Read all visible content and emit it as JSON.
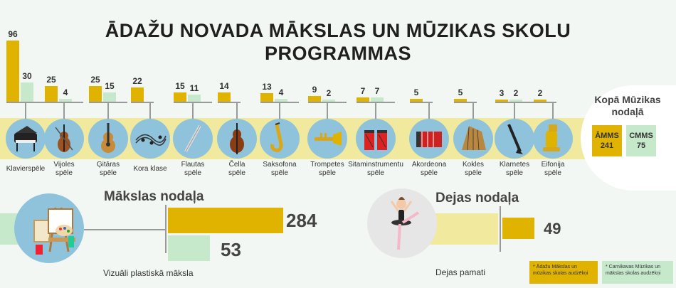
{
  "title_line1": "ĀDAŽU NOVADA MĀKSLAS UN MŪZIKAS SKOLU",
  "title_line2": "PROGRAMMAS",
  "colors": {
    "amms": "#e0b300",
    "cmms": "#c6e9cc",
    "band_yellow": "#f1ea9e",
    "band_green": "#d4e9d2",
    "circle": "#8fc3dc"
  },
  "chart_data": {
    "type": "bar",
    "series": [
      {
        "name": "Ādažu Mākslas un mūzikas skolas audzēkņi",
        "color": "#e0b300"
      },
      {
        "name": "Carnikavas Mūzikas un mākslas skolas audzēkņi",
        "color": "#c6e9cc"
      }
    ],
    "categories": [
      {
        "label": "Klavierspēle",
        "icon": "piano-icon",
        "amms": 96,
        "cmms": 30
      },
      {
        "label": "Vijoles spēle",
        "icon": "violin-icon",
        "amms": 25,
        "cmms": 4
      },
      {
        "label": "Ģitāras spēle",
        "icon": "guitar-icon",
        "amms": 25,
        "cmms": 15
      },
      {
        "label": "Kora klase",
        "icon": "music-notes-icon",
        "amms": 22,
        "cmms": null
      },
      {
        "label": "Flautas spēle",
        "icon": "flute-icon",
        "amms": 15,
        "cmms": 11
      },
      {
        "label": "Čella spēle",
        "icon": "cello-icon",
        "amms": 14,
        "cmms": null
      },
      {
        "label": "Saksofona spēle",
        "icon": "saxophone-icon",
        "amms": 13,
        "cmms": 4
      },
      {
        "label": "Trompetes spēle",
        "icon": "trumpet-icon",
        "amms": 9,
        "cmms": 2
      },
      {
        "label": "Sitaminstrumentu spēle",
        "icon": "drums-icon",
        "amms": 7,
        "cmms": 7
      },
      {
        "label": "Akordeona spēle",
        "icon": "accordion-icon",
        "amms": 5,
        "cmms": null
      },
      {
        "label": "Kokles spēle",
        "icon": "kokle-icon",
        "amms": 5,
        "cmms": null
      },
      {
        "label": "Klarnetes spēle",
        "icon": "clarinet-icon",
        "amms": 3,
        "cmms": 2
      },
      {
        "label": "Eifonija spēle",
        "icon": "euphonium-icon",
        "amms": 2,
        "cmms": null
      }
    ]
  },
  "summary": {
    "title": "Kopā Mūzikas nodaļā",
    "amms_label": "ĀMMS",
    "amms_value": "241",
    "cmms_label": "CMMS",
    "cmms_value": "75"
  },
  "art": {
    "title": "Mākslas nodaļa",
    "amms": 284,
    "cmms": 53,
    "amms_text": "284",
    "cmms_text": "53",
    "caption": "Vizuāli plastiskā māksla"
  },
  "dance": {
    "title": "Dejas nodaļa",
    "amms": 49,
    "amms_text": "49",
    "caption": "Dejas pamati"
  },
  "legend": {
    "amms": "* Ādažu Mākslas un mūzikas skolas audzēkņi",
    "cmms": "* Carnikavas Mūzikas un mākslas skolas audzēkņi"
  }
}
